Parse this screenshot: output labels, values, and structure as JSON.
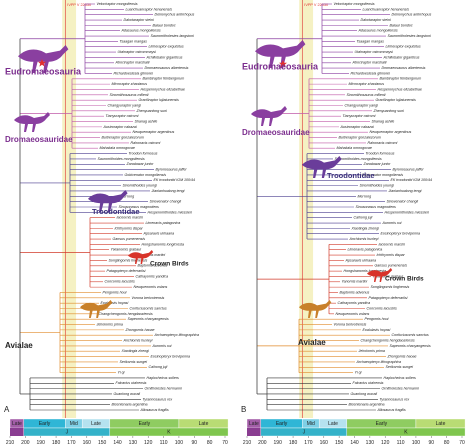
{
  "panels": [
    {
      "label": "A",
      "annotation": "IVPP V 22530",
      "clades": [
        "Eudromaeosauria",
        "Dromaeosauridae",
        "Troodontidae",
        "Crown Birds",
        "Avialae"
      ],
      "taxa": [
        "Velociraptor mongoliensis",
        "Luanchuanraptor henanensis",
        "Deinonychus antirrhopus",
        "Dakotaraptor steini",
        "Balaur bondoc",
        "Adasaurus mongoliensis",
        "Saurornitholestes langstoni",
        "Tsaagan mangas",
        "Linheraptor exquisitus",
        "Utahraptor ostrommaysi",
        "Achillobator giganticus",
        "Atrociraptor marshalli",
        "Dromaeosaurus albertensis",
        "Richardoestesia gilmorei",
        "Bambiraptor feinbergorum",
        "Microraptor zhaoianus",
        "Hesperonychus elizabethae",
        "Sinornithosaurus millenii",
        "Graciliraptor lujiatunensis",
        "Changyuraptor yangi",
        "Zhenyuanlong suni",
        "Tianyuraptor ostromi",
        "Shanag ashile",
        "Austroraptor cabazai",
        "Neuquenraptor argentinus",
        "Buitreraptor gonzalezorum",
        "Rahonavis ostromi",
        "Mahakala omnogovae",
        "Troodon formosus",
        "Saurornithoides mongoliensis",
        "Zanabazar junior",
        "Byronosaurus jaffei",
        "Gobivenator mongoliensis",
        "EK troodontid IGM 100/44",
        "Sinornithoides youngi",
        "Jianianhualong tengi",
        "Mei long",
        "Sinovenator changii",
        "Sinusonasus magnodens",
        "Hesperornithoides miessleri",
        "Iaceornis marshi",
        "Limenavis patagonica",
        "Ichthyornis dispar",
        "Apsaravis ukhaana",
        "Gansus yumenensis",
        "Hongshanornis longicresta",
        "Yixianornis grabaui",
        "Yanornis martini",
        "Songlingornis linghensis",
        "Baptornis advenus",
        "Patagopteryx deferrariisi",
        "Cathayornis yandica",
        "Concornis lacustris",
        "Neuquenornis volans",
        "Pengornis houi",
        "Vorona berivotrensis",
        "Eoalulavis hoyasi",
        "Confuciusornis sanctus",
        "Changchengornis hengdaoziensis",
        "Sapeornis chaoyangensis",
        "Jeholornis prima",
        "Zhongornis haoae",
        "Archaeopteryx lithographica",
        "Anchiornis huxleyi",
        "Aurornis xui",
        "Xiaotingia zhengi",
        "Eosinopteryx brevipenna",
        "Serikornis sungei",
        "Caihong juji",
        "Yi qi",
        "Haplocheirus sollers",
        "Falcarius utahensis",
        "Ornitholestes hermanni",
        "Guanlong wucaii",
        "Tyrannosaurus rex",
        "Bicentenaria argentina",
        "Allosaurus fragilis"
      ],
      "timescale": {
        "stages": [
          "Late",
          "Early",
          "Mid",
          "Late",
          "Early",
          "Late"
        ],
        "periods": [
          "J",
          "K"
        ],
        "ticks": [
          210,
          200,
          190,
          180,
          170,
          160,
          150,
          140,
          130,
          120,
          110,
          100,
          90,
          80,
          70
        ]
      }
    },
    {
      "label": "B",
      "annotation": "IVPP V 22530",
      "clades": [
        "Eudromaeosauria",
        "Dromaeosauridae",
        "Troodontidae",
        "Crown Birds",
        "Avialae"
      ],
      "taxa": [
        "Velociraptor mongoliensis",
        "Luanchuanraptor henanensis",
        "Deinonychus antirrhopus",
        "Dakotaraptor steini",
        "Balaur bondoc",
        "Adasaurus mongoliensis",
        "Saurornitholestes langstoni",
        "Tsaagan mangas",
        "Linheraptor exquisitus",
        "Utahraptor ostrommaysi",
        "Achillobator giganticus",
        "Atrociraptor marshalli",
        "Dromaeosaurus albertensis",
        "Richardoestesia gilmorei",
        "Bambiraptor feinbergorum",
        "Microraptor zhaoianus",
        "Hesperonychus elizabethae",
        "Sinornithosaurus millenii",
        "Graciliraptor lujiatunensis",
        "Changyuraptor yangi",
        "Zhenyuanlong suni",
        "Tianyuraptor ostromi",
        "Shanag ashile",
        "Austroraptor cabazai",
        "Neuquenraptor argentinus",
        "Buitreraptor gonzalezorum",
        "Rahonavis ostromi",
        "Mahakala omnogovae",
        "Troodon formosus",
        "Saurornithoides mongoliensis",
        "Zanabazar junior",
        "Byronosaurus jaffei",
        "Gobivenator mongoliensis",
        "EK troodontid IGM 100/44",
        "Sinornithoides youngi",
        "Jianianhualong tengi",
        "Mei long",
        "Sinovenator changii",
        "Sinusonasus magnodens",
        "Hesperornithoides miessleri",
        "Caihong juji",
        "Aurornis xui",
        "Xiaotingia zhengi",
        "Eosinopteryx brevipenna",
        "Anchiornis huxleyi",
        "Iaceornis marshi",
        "Limenavis patagonica",
        "Ichthyornis dispar",
        "Apsaravis ukhaana",
        "Gansus yumenensis",
        "Hongshanornis longicresta",
        "Yixianornis grabaui",
        "Yanornis martini",
        "Songlingornis linghensis",
        "Baptornis advenus",
        "Patagopteryx deferrariisi",
        "Cathayornis yandica",
        "Concornis lacustris",
        "Neuquenornis volans",
        "Pengornis houi",
        "Vorona berivotrensis",
        "Eoalulavis hoyasi",
        "Confuciusornis sanctus",
        "Changchengornis hengdaoziensis",
        "Sapeornis chaoyangensis",
        "Jeholornis prima",
        "Zhongornis haoae",
        "Archaeopteryx lithographica",
        "Serikornis sungei",
        "Yi qi",
        "Haplocheirus sollers",
        "Falcarius utahensis",
        "Ornitholestes hermanni",
        "Guanlong wucaii",
        "Tyrannosaurus rex",
        "Bicentenaria argentina",
        "Allosaurus fragilis"
      ],
      "timescale": {
        "stages": [
          "Late",
          "Early",
          "Mid",
          "Late",
          "Early",
          "Late"
        ],
        "periods": [
          "J",
          "K"
        ],
        "ticks": [
          210,
          200,
          190,
          180,
          170,
          160,
          150,
          140,
          130,
          120,
          110,
          100,
          90,
          80,
          70
        ]
      }
    }
  ]
}
